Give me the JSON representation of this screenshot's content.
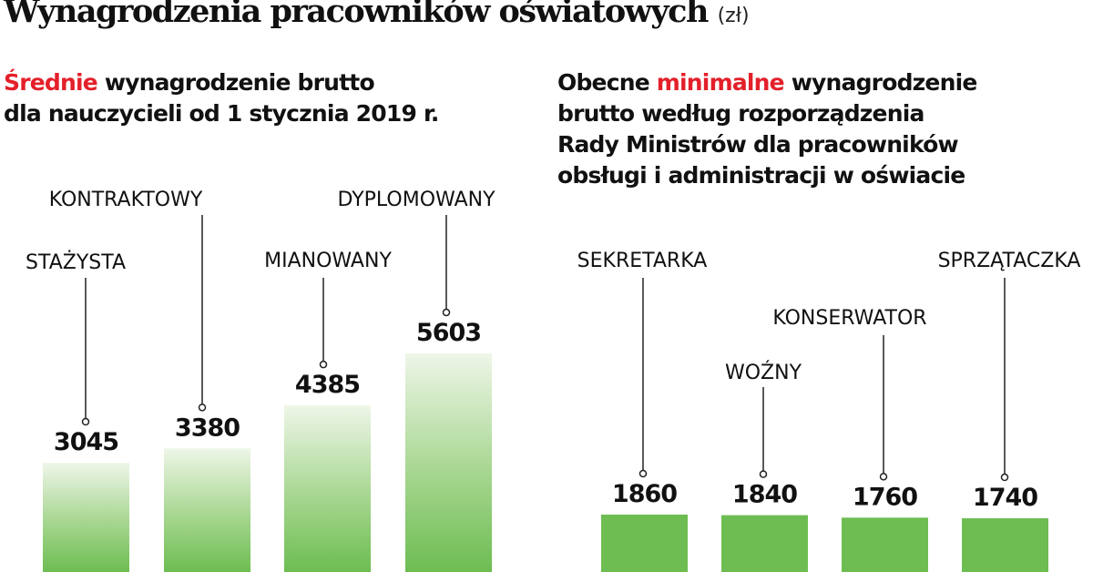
{
  "title": "Wynagrodzenia pracowników oświatowych",
  "unit": "(zł)",
  "colors": {
    "accent_red": "#e3202a",
    "bar_green": "#6dbd52",
    "bar_green_light": "#eef6e8"
  },
  "chart_data": [
    {
      "type": "bar",
      "title_highlight": "Średnie",
      "title_rest_1": " wynagrodzenie brutto",
      "title_line_2": "dla nauczycieli od 1 stycznia 2019 r.",
      "categories": [
        "STAŻYSTA",
        "KONTRAKTOWY",
        "MIANOWANY",
        "DYPLOMOWANY"
      ],
      "values": [
        3045,
        3380,
        4385,
        5603
      ],
      "data_labels": [
        "3045",
        "3380",
        "4385",
        "5603"
      ]
    },
    {
      "type": "bar",
      "title_part_1": "Obecne ",
      "title_highlight": "minimalne",
      "title_rest_1": " wynagrodzenie",
      "title_line_2": "brutto według rozporządzenia",
      "title_line_3": "Rady Ministrów dla pracowników",
      "title_line_4": "obsługi i administracji w oświacie",
      "categories": [
        "SEKRETARKA",
        "WOŹNY",
        "KONSERWATOR",
        "SPRZĄTACZKA"
      ],
      "values": [
        1860,
        1840,
        1760,
        1740
      ],
      "data_labels": [
        "1860",
        "1840",
        "1760",
        "1740"
      ]
    }
  ]
}
